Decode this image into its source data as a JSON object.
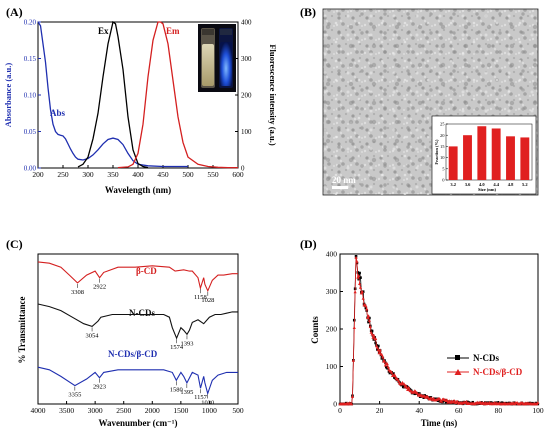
{
  "chart_data": [
    {
      "panel": "(A)",
      "type": "line",
      "xlabel": "Wavelength (nm)",
      "ylabel_left": "Absorbance (a.u.)",
      "ylabel_right": "Fluorescence intensity (a.u.)",
      "xlim": [
        200,
        600
      ],
      "ylim_left": [
        0,
        0.2
      ],
      "ylim_right": [
        0,
        400
      ],
      "xticks": [
        "200",
        "250",
        "300",
        "350",
        "400",
        "450",
        "500",
        "550",
        "600"
      ],
      "yticks_left": [
        "0.00",
        "0.05",
        "0.10",
        "0.15",
        "0.20"
      ],
      "yticks_right": [
        "0",
        "100",
        "200",
        "300",
        "400"
      ],
      "colors": {
        "Abs": "#1f2fb0",
        "Ex": "#000000",
        "Em": "#d42020"
      },
      "series": [
        {
          "name": "Abs",
          "axis": "left",
          "x": [
            200,
            205,
            210,
            215,
            220,
            225,
            230,
            235,
            240,
            245,
            250,
            255,
            260,
            265,
            270,
            275,
            280,
            290,
            300,
            310,
            320,
            330,
            340,
            350,
            360,
            370,
            380,
            390,
            400,
            420,
            450,
            480,
            500
          ],
          "y": [
            0.215,
            0.195,
            0.17,
            0.145,
            0.11,
            0.08,
            0.06,
            0.05,
            0.046,
            0.045,
            0.044,
            0.04,
            0.033,
            0.026,
            0.02,
            0.015,
            0.012,
            0.011,
            0.013,
            0.018,
            0.025,
            0.033,
            0.039,
            0.041,
            0.039,
            0.032,
            0.02,
            0.01,
            0.005,
            0.003,
            0.002,
            0.002,
            0.002
          ]
        },
        {
          "name": "Ex",
          "axis": "right",
          "x": [
            280,
            290,
            300,
            310,
            320,
            330,
            340,
            350,
            355,
            360,
            370,
            380,
            390,
            400,
            410,
            420
          ],
          "y": [
            3,
            10,
            30,
            80,
            150,
            250,
            340,
            400,
            395,
            360,
            270,
            140,
            50,
            12,
            4,
            1
          ]
        },
        {
          "name": "Em",
          "axis": "right",
          "x": [
            360,
            380,
            390,
            400,
            410,
            420,
            430,
            440,
            445,
            450,
            460,
            470,
            480,
            490,
            500,
            520,
            540,
            560,
            580,
            600
          ],
          "y": [
            1,
            3,
            10,
            40,
            120,
            250,
            350,
            400,
            402,
            395,
            340,
            240,
            140,
            70,
            30,
            10,
            4,
            2,
            1,
            1
          ]
        }
      ],
      "annotations": [
        "Abs",
        "Ex",
        "Em"
      ]
    },
    {
      "panel": "(B)",
      "type": "bar",
      "scale_label": "20 nm",
      "xlabel": "Size (nm)",
      "ylabel": "Fraction (%)",
      "categories": [
        "3.2",
        "3.6",
        "4.0",
        "4.4",
        "4.8",
        "5.2"
      ],
      "values": [
        15,
        20,
        24,
        23,
        19.5,
        19
      ],
      "ylim": [
        0,
        25
      ],
      "yticks": [
        "0",
        "5",
        "10",
        "15",
        "20",
        "25"
      ],
      "color": "#e02020"
    },
    {
      "panel": "(C)",
      "type": "line",
      "xlabel": "Wavenumber (cm⁻¹)",
      "ylabel": "% Transmittance",
      "xlim": [
        4000,
        500
      ],
      "xticks": [
        "4000",
        "3500",
        "3000",
        "2500",
        "2000",
        "1500",
        "1000",
        "500"
      ],
      "series": [
        {
          "name": "β-CD",
          "color": "#d42020",
          "x": [
            4000,
            3800,
            3600,
            3450,
            3308,
            3150,
            3000,
            2922,
            2850,
            2600,
            2300,
            2000,
            1700,
            1600,
            1450,
            1350,
            1300,
            1200,
            1158,
            1100,
            1080,
            1028,
            950,
            850,
            750,
            600,
            500
          ],
          "y": [
            0.62,
            0.61,
            0.58,
            0.52,
            0.46,
            0.52,
            0.55,
            0.5,
            0.54,
            0.58,
            0.58,
            0.59,
            0.58,
            0.55,
            0.56,
            0.55,
            0.55,
            0.5,
            0.42,
            0.5,
            0.45,
            0.4,
            0.48,
            0.52,
            0.52,
            0.53,
            0.53
          ]
        },
        {
          "name": "N-CDs",
          "color": "#111111",
          "x": [
            4000,
            3800,
            3600,
            3400,
            3200,
            3054,
            2950,
            2900,
            2700,
            2400,
            2100,
            1800,
            1700,
            1650,
            1574,
            1500,
            1450,
            1393,
            1350,
            1300,
            1200,
            1100,
            1000,
            900,
            800,
            700,
            600,
            500
          ],
          "y": [
            0.3,
            0.28,
            0.25,
            0.2,
            0.15,
            0.13,
            0.17,
            0.2,
            0.22,
            0.22,
            0.22,
            0.22,
            0.2,
            0.12,
            0.04,
            0.12,
            0.1,
            0.07,
            0.1,
            0.16,
            0.18,
            0.15,
            0.2,
            0.22,
            0.22,
            0.23,
            0.24,
            0.24
          ]
        },
        {
          "name": "N-CDs/β-CD",
          "color": "#1f2fb0",
          "x": [
            4000,
            3800,
            3600,
            3355,
            3150,
            3000,
            2923,
            2850,
            2600,
            2300,
            2000,
            1800,
            1650,
            1580,
            1500,
            1450,
            1395,
            1300,
            1200,
            1157,
            1100,
            1080,
            1030,
            950,
            850,
            700,
            600,
            500
          ],
          "y": [
            -0.18,
            -0.2,
            -0.25,
            -0.32,
            -0.27,
            -0.22,
            -0.26,
            -0.22,
            -0.2,
            -0.2,
            -0.2,
            -0.2,
            -0.22,
            -0.28,
            -0.22,
            -0.25,
            -0.3,
            -0.22,
            -0.24,
            -0.34,
            -0.25,
            -0.3,
            -0.38,
            -0.28,
            -0.24,
            -0.22,
            -0.22,
            -0.22
          ]
        }
      ],
      "peak_labels": [
        "3308",
        "2922",
        "1158",
        "1028",
        "3054",
        "1574",
        "1393",
        "3355",
        "2923",
        "1580",
        "1395",
        "1157",
        "1030"
      ]
    },
    {
      "panel": "(D)",
      "type": "scatter",
      "xlabel": "Time (ns)",
      "ylabel": "Counts",
      "xlim": [
        0,
        100
      ],
      "ylim": [
        0,
        400
      ],
      "xticks": [
        "0",
        "20",
        "40",
        "60",
        "80",
        "100"
      ],
      "yticks": [
        "0",
        "100",
        "200",
        "300",
        "400"
      ],
      "series": [
        {
          "name": "N-CDs",
          "color": "#000000",
          "marker": "square",
          "peak_x": 8,
          "peak_y": 395,
          "tau": 11.5,
          "rise_start": 6.2
        },
        {
          "name": "N-CDs/β-CD",
          "color": "#e02020",
          "marker": "triangle",
          "peak_x": 8,
          "peak_y": 385,
          "tau": 11.8,
          "rise_start": 6.2
        }
      ]
    }
  ],
  "panels": {
    "a": {
      "label": "(A)",
      "abs_label": "Abs",
      "ex_label": "Ex",
      "em_label": "Em"
    },
    "b": {
      "label": "(B)",
      "scale": "20 nm",
      "inset_xlabel": "Size (nm)",
      "inset_ylabel": "Fraction (%)"
    },
    "c": {
      "label": "(C)",
      "xlabel": "Wavenumber (cm⁻¹)",
      "ylabel": "% Transmittance",
      "bcd": "β-CD",
      "ncds": "N-CDs",
      "mix": "N-CDs/β-CD"
    },
    "d": {
      "label": "(D)",
      "xlabel": "Time (ns)",
      "ylabel": "Counts",
      "leg1": "N-CDs",
      "leg2": "N-CDs/β-CD"
    }
  }
}
